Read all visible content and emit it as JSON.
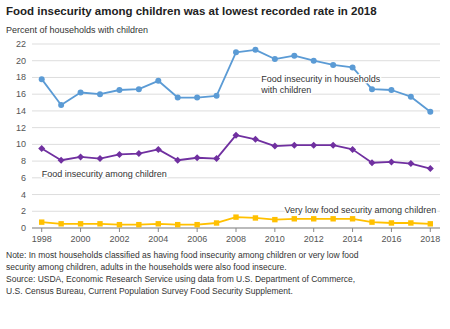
{
  "chart_data": {
    "type": "line",
    "title": "Food insecurity among children was at lowest recorded rate in 2018",
    "ylabel": "Percent of households with children",
    "note": "Note: In most households classified as having food insecurity among children or very low food\nsecurity among children, adults in the households were also food insecure.\nSource: USDA, Economic Research Service using data from U.S. Department of Commerce,\nU.S. Census Bureau, Current Population Survey Food Security Supplement.",
    "x": [
      1998,
      1999,
      2000,
      2001,
      2002,
      2003,
      2004,
      2005,
      2006,
      2007,
      2008,
      2009,
      2010,
      2011,
      2012,
      2013,
      2014,
      2015,
      2016,
      2017,
      2018
    ],
    "series": [
      {
        "name": "Food insecurity in households\nwith children",
        "color": "#5B9BD5",
        "marker": "circle",
        "values": [
          17.8,
          14.7,
          16.2,
          16.0,
          16.5,
          16.6,
          17.6,
          15.6,
          15.6,
          15.8,
          21.0,
          21.3,
          20.2,
          20.6,
          20.0,
          19.5,
          19.2,
          16.6,
          16.5,
          15.7,
          13.9
        ]
      },
      {
        "name": "Food insecurity among children",
        "color": "#7030A0",
        "marker": "diamond",
        "values": [
          9.5,
          8.1,
          8.5,
          8.3,
          8.8,
          8.9,
          9.4,
          8.1,
          8.4,
          8.3,
          11.1,
          10.6,
          9.8,
          9.9,
          9.9,
          9.9,
          9.4,
          7.8,
          7.9,
          7.7,
          7.1
        ]
      },
      {
        "name": "Very low food security among children",
        "color": "#FFC000",
        "marker": "square",
        "values": [
          0.7,
          0.5,
          0.5,
          0.5,
          0.4,
          0.4,
          0.5,
          0.4,
          0.4,
          0.6,
          1.3,
          1.2,
          1.0,
          1.1,
          1.1,
          1.1,
          1.1,
          0.7,
          0.6,
          0.6,
          0.5
        ]
      }
    ],
    "xlim": [
      1997.5,
      2018.5
    ],
    "xticks": [
      1998,
      2000,
      2002,
      2004,
      2006,
      2008,
      2010,
      2012,
      2014,
      2016,
      2018
    ],
    "ylim": [
      0,
      22
    ],
    "yticks": [
      0,
      2,
      4,
      6,
      8,
      10,
      12,
      14,
      16,
      18,
      20,
      22
    ],
    "grid": true
  }
}
